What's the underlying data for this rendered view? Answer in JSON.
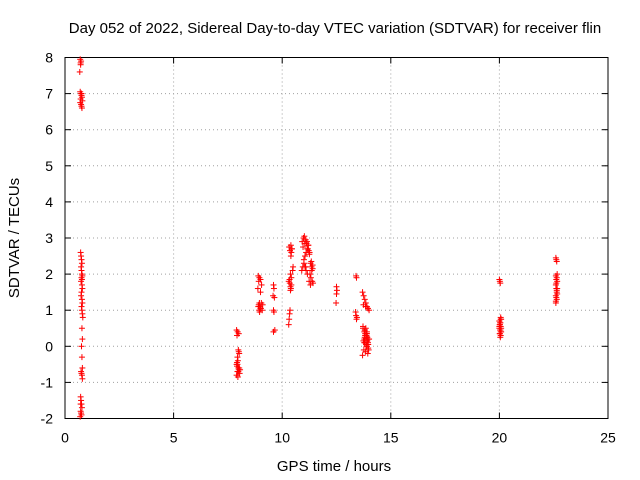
{
  "chart_data": {
    "type": "scatter",
    "title": "Day 052 of 2022, Sidereal Day-to-day VTEC variation (SDTVAR) for receiver flin",
    "xlabel": "GPS time / hours",
    "ylabel": "SDTVAR / TECUs",
    "xlim": [
      0,
      25
    ],
    "ylim": [
      -2,
      8
    ],
    "xticks": [
      "0",
      "5",
      "10",
      "15",
      "20",
      "25"
    ],
    "yticks": [
      "-2",
      "-1",
      "0",
      "1",
      "2",
      "3",
      "4",
      "5",
      "6",
      "7",
      "8"
    ],
    "grid": true,
    "marker": "+",
    "color": "#ff0000",
    "series": [
      {
        "name": "SDTVAR",
        "x": [
          0.7,
          0.72,
          0.68,
          0.7,
          0.74,
          0.76,
          0.72,
          0.7,
          0.74,
          0.76,
          0.78,
          0.72,
          0.74,
          0.76,
          0.8,
          0.78,
          0.72,
          0.74,
          0.76,
          0.78,
          0.74,
          0.76,
          0.78,
          0.8,
          0.76,
          0.78,
          0.74,
          0.78,
          0.8,
          0.76,
          0.74,
          0.78,
          0.8,
          0.76,
          0.78,
          0.8,
          0.82,
          0.78,
          0.8,
          0.76,
          0.78,
          0.8,
          0.74,
          0.76,
          0.78,
          0.8,
          0.72,
          0.74,
          0.76,
          0.78,
          0.72,
          0.74,
          0.76,
          0.7,
          0.72,
          7.9,
          7.95,
          8.0,
          7.92,
          7.98,
          8.02,
          7.94,
          7.96,
          7.9,
          7.92,
          7.98,
          8.0,
          7.94,
          8.04,
          7.9,
          7.96,
          8.0,
          8.02,
          7.92,
          7.98,
          7.94,
          8.06,
          8.9,
          8.95,
          9.0,
          8.92,
          9.05,
          8.88,
          9.0,
          8.95,
          9.1,
          8.9,
          9.02,
          8.94,
          9.08,
          8.98,
          9.04,
          8.92,
          9.0,
          8.96,
          9.6,
          9.62,
          9.58,
          9.64,
          9.6,
          9.62,
          9.66,
          9.6,
          10.3,
          10.32,
          10.34,
          10.36,
          10.38,
          10.4,
          10.42,
          10.3,
          10.34,
          10.38,
          10.4,
          10.42,
          10.44,
          10.36,
          10.32,
          10.4,
          10.45,
          10.38,
          10.35,
          10.42,
          10.5,
          10.48,
          10.9,
          10.95,
          11.0,
          11.05,
          11.1,
          11.15,
          11.2,
          10.92,
          10.98,
          11.02,
          11.08,
          11.12,
          11.18,
          11.22,
          11.25,
          11.3,
          11.35,
          11.4,
          11.28,
          11.32,
          11.38,
          11.42,
          11.0,
          11.05,
          11.1,
          10.96,
          11.04,
          11.14,
          11.2,
          11.26,
          11.34,
          11.4,
          11.36,
          11.3,
          11.24,
          11.16,
          11.08,
          12.5,
          12.52,
          12.5,
          12.48,
          13.4,
          13.42,
          13.38,
          13.4,
          13.44,
          13.42,
          13.7,
          13.75,
          13.8,
          13.85,
          13.9,
          13.95,
          14.0,
          13.72,
          13.78,
          13.82,
          13.88,
          13.92,
          13.98,
          13.74,
          13.8,
          13.86,
          13.9,
          13.96,
          13.76,
          13.84,
          13.94,
          13.7,
          13.8,
          13.9,
          14.0,
          13.78,
          13.88,
          13.98,
          13.82,
          13.92,
          13.86,
          13.96,
          13.74,
          13.84,
          13.9,
          13.8,
          13.95,
          13.72,
          13.85,
          13.88,
          13.78,
          13.92,
          20.0,
          20.02,
          20.04,
          20.06,
          20.08,
          20.0,
          20.04,
          20.02,
          20.06,
          20.0,
          20.04,
          20.08,
          20.02,
          20.06,
          20.04,
          20.0,
          20.02,
          20.08,
          20.04,
          20.06,
          20.02,
          20.0,
          20.04,
          20.06,
          22.6,
          22.62,
          22.64,
          22.66,
          22.6,
          22.64,
          22.62,
          22.66,
          22.6,
          22.62,
          22.64,
          22.66,
          22.6,
          22.62,
          22.64,
          22.6,
          22.66,
          22.62,
          22.64,
          22.6
        ],
        "y": [
          7.95,
          7.85,
          7.6,
          7.05,
          7.0,
          6.95,
          6.85,
          6.75,
          6.7,
          6.65,
          6.9,
          7.8,
          7.9,
          7.0,
          6.8,
          6.6,
          2.6,
          2.5,
          2.4,
          2.3,
          2.2,
          2.1,
          2.0,
          1.95,
          1.9,
          1.85,
          1.8,
          1.7,
          1.6,
          1.5,
          1.4,
          1.3,
          1.2,
          1.1,
          1.0,
          0.9,
          0.8,
          0.5,
          0.2,
          0.0,
          -0.3,
          -0.6,
          -0.7,
          -0.75,
          -0.8,
          -0.9,
          -1.4,
          -1.5,
          -1.6,
          -1.7,
          -1.8,
          -1.85,
          -1.9,
          -1.95,
          -1.6,
          0.45,
          0.4,
          0.35,
          0.3,
          -0.1,
          -0.2,
          -0.3,
          -0.4,
          -0.5,
          -0.55,
          -0.6,
          -0.65,
          -0.7,
          -0.75,
          -0.8,
          -0.85,
          -0.15,
          -0.6,
          -0.45,
          -0.7,
          -0.5,
          -0.65,
          1.95,
          1.9,
          1.85,
          1.8,
          1.7,
          1.6,
          1.5,
          1.2,
          1.15,
          1.1,
          1.05,
          1.0,
          1.0,
          1.1,
          1.2,
          1.15,
          1.05,
          0.95,
          1.7,
          1.6,
          1.4,
          1.35,
          1.0,
          0.95,
          0.45,
          0.4,
          0.6,
          0.75,
          0.9,
          1.0,
          1.55,
          1.6,
          1.7,
          1.8,
          1.85,
          2.0,
          2.5,
          2.6,
          2.7,
          2.65,
          2.75,
          2.8,
          2.7,
          1.65,
          1.75,
          1.9,
          2.2,
          2.1,
          2.1,
          2.2,
          2.3,
          2.5,
          2.6,
          2.7,
          2.8,
          2.9,
          3.0,
          3.05,
          2.95,
          2.85,
          2.7,
          2.65,
          2.55,
          2.3,
          2.2,
          2.15,
          2.0,
          1.9,
          1.8,
          1.75,
          2.4,
          2.2,
          2.1,
          2.75,
          2.85,
          2.9,
          2.8,
          2.6,
          2.35,
          2.25,
          2.1,
          1.7,
          1.8,
          2.0,
          2.2,
          1.65,
          1.55,
          1.45,
          1.2,
          1.95,
          1.9,
          0.95,
          0.85,
          0.8,
          0.75,
          1.5,
          1.4,
          1.3,
          1.2,
          1.1,
          1.05,
          1.0,
          0.5,
          0.4,
          0.35,
          0.3,
          0.25,
          0.2,
          0.15,
          0.1,
          0.05,
          0.0,
          -0.05,
          -0.1,
          -0.15,
          -0.2,
          -0.25,
          0.45,
          0.35,
          0.2,
          0.1,
          0.0,
          -0.1,
          0.3,
          0.2,
          0.15,
          0.05,
          1.15,
          1.1,
          0.4,
          0.25,
          0.1,
          0.55,
          0.5,
          0.35,
          0.2,
          0.15,
          1.85,
          1.8,
          1.75,
          0.8,
          0.75,
          0.7,
          0.65,
          0.6,
          0.55,
          0.5,
          0.45,
          0.4,
          0.35,
          0.3,
          0.25,
          0.7,
          0.6,
          0.5,
          0.45,
          0.4,
          0.35,
          0.55,
          0.65,
          0.75,
          2.45,
          2.4,
          2.35,
          2.0,
          1.95,
          1.9,
          1.85,
          1.8,
          1.7,
          1.6,
          1.5,
          1.45,
          1.4,
          1.35,
          1.3,
          1.2,
          1.6,
          1.75,
          1.55,
          1.25
        ]
      }
    ]
  }
}
